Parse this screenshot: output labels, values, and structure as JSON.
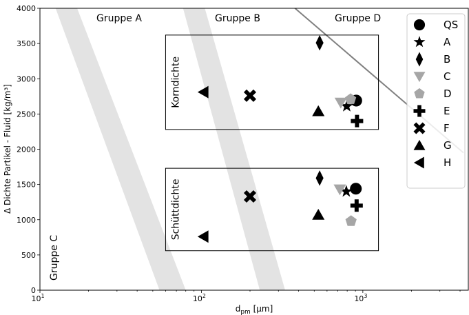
{
  "chart_data": {
    "type": "scatter",
    "title": "",
    "xlabel": "d",
    "xlabel_sub": "pm",
    "xlabel_unit": " [µm]",
    "ylabel": "Δ Dichte Partikel - Fluid [kg/m³]",
    "xscale": "log",
    "xlim": [
      10,
      4500
    ],
    "ylim": [
      0,
      4000
    ],
    "x_ticks": [
      {
        "value": 10,
        "base": "10",
        "exp": "1"
      },
      {
        "value": 100,
        "base": "10",
        "exp": "2"
      },
      {
        "value": 1000,
        "base": "10",
        "exp": "3"
      }
    ],
    "y_ticks": [
      "0",
      "500",
      "1000",
      "1500",
      "2000",
      "2500",
      "3000",
      "3500",
      "4000"
    ],
    "grid": false,
    "legend_position": "top-right",
    "region_labels": {
      "gruppe_a": "Gruppe A",
      "gruppe_b": "Gruppe B",
      "gruppe_d": "Gruppe D",
      "gruppe_c": "Gruppe C"
    },
    "boxes": [
      {
        "label": "Korndichte",
        "x": [
          60,
          1250
        ],
        "y": [
          2280,
          3620
        ]
      },
      {
        "label": "Schüttdichte",
        "x": [
          60,
          1250
        ],
        "y": [
          560,
          1730
        ]
      }
    ],
    "bands": [
      {
        "top_x": [
          12.5,
          17
        ],
        "bottom_x": [
          55,
          80
        ]
      },
      {
        "top_x": [
          77,
          105
        ],
        "bottom_x": [
          230,
          330
        ]
      }
    ],
    "boundary_line": {
      "from": [
        380,
        4000
      ],
      "to": [
        4200,
        1950
      ]
    },
    "series": [
      {
        "name": "QS",
        "marker": "circle",
        "color": "#000000",
        "points": [
          [
            910,
            2690
          ],
          [
            905,
            1440
          ]
        ]
      },
      {
        "name": "A",
        "marker": "star",
        "color": "#000000",
        "points": [
          [
            795,
            2610
          ],
          [
            790,
            1400
          ]
        ]
      },
      {
        "name": "B",
        "marker": "diamond",
        "color": "#000000",
        "points": [
          [
            540,
            3510
          ],
          [
            540,
            1590
          ]
        ]
      },
      {
        "name": "C",
        "marker": "triangle_down",
        "color": "#a6a6a6",
        "points": [
          [
            730,
            2660
          ],
          [
            720,
            1430
          ]
        ]
      },
      {
        "name": "D",
        "marker": "pentagon",
        "color": "#a6a6a6",
        "points": [
          [
            840,
            2710
          ],
          [
            845,
            980
          ]
        ]
      },
      {
        "name": "E",
        "marker": "plus",
        "color": "#000000",
        "points": [
          [
            920,
            2400
          ],
          [
            915,
            1200
          ]
        ]
      },
      {
        "name": "F",
        "marker": "x",
        "color": "#000000",
        "points": [
          [
            200,
            2760
          ],
          [
            200,
            1330
          ]
        ]
      },
      {
        "name": "G",
        "marker": "triangle_up",
        "color": "#000000",
        "points": [
          [
            530,
            2540
          ],
          [
            530,
            1070
          ]
        ]
      },
      {
        "name": "H",
        "marker": "triangle_left",
        "color": "#000000",
        "points": [
          [
            103,
            2810
          ],
          [
            103,
            760
          ]
        ]
      }
    ]
  }
}
